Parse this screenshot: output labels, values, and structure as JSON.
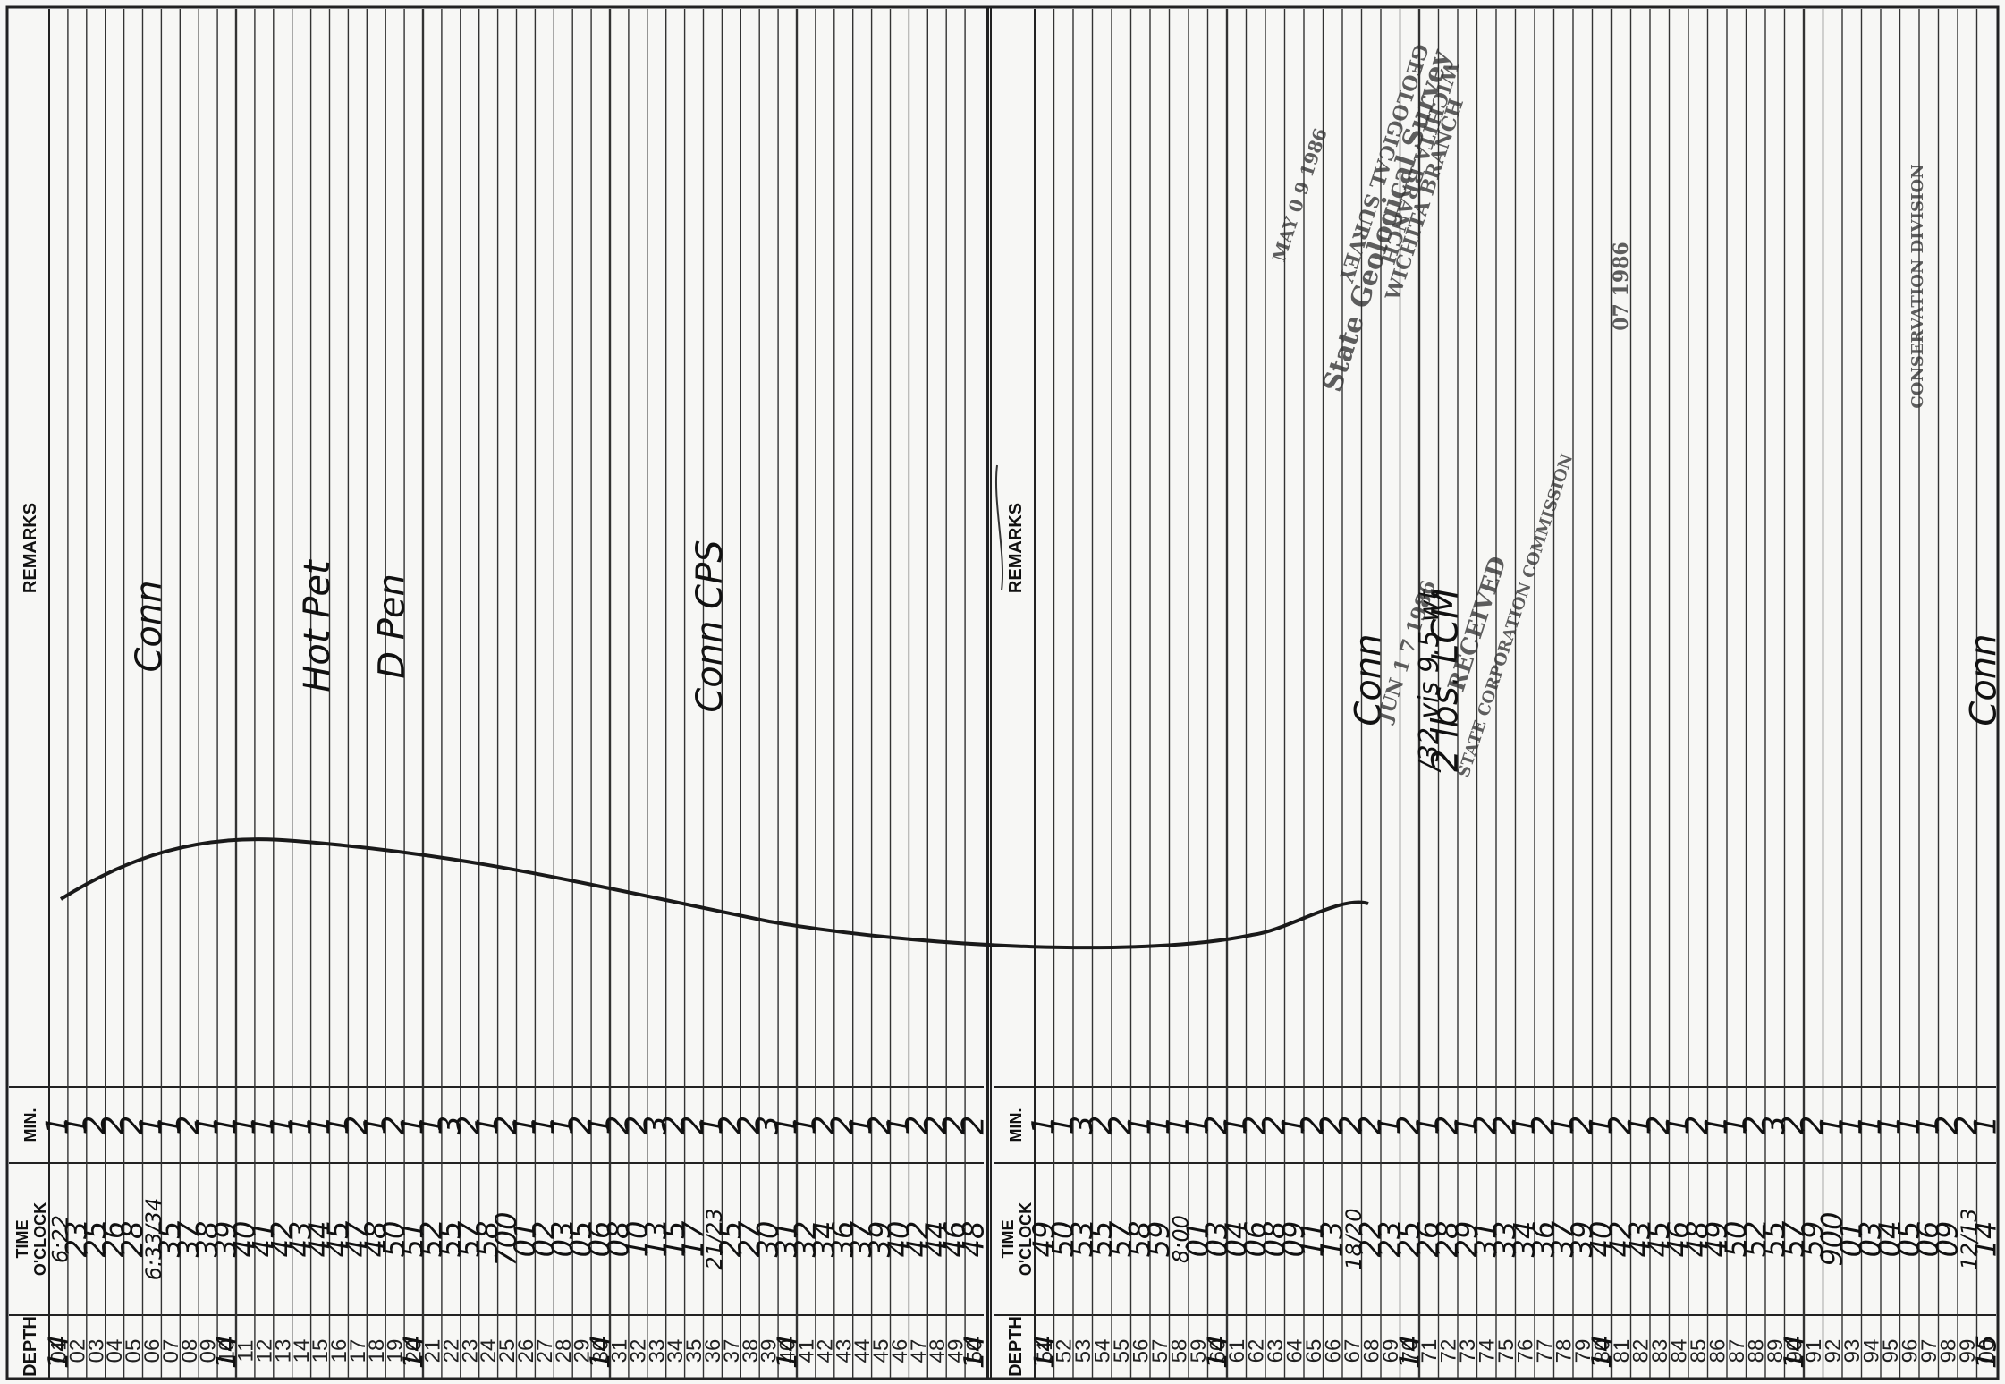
{
  "header": {
    "depth": "DEPTH",
    "time_line1": "TIME",
    "time_line2": "O'CLOCK",
    "min": "MIN.",
    "remarks": "REMARKS"
  },
  "left_panel": {
    "rows": [
      {
        "depth": "01",
        "hundreds": "14",
        "time": "6:22",
        "min": "1"
      },
      {
        "depth": "02",
        "time": "23",
        "min": "1"
      },
      {
        "depth": "03",
        "time": "25",
        "min": "2"
      },
      {
        "depth": "04",
        "time": "26",
        "min": "2"
      },
      {
        "depth": "05",
        "time": "28",
        "min": "2"
      },
      {
        "depth": "06",
        "time": "6:33/34",
        "min": "1"
      },
      {
        "depth": "07",
        "time": "35",
        "min": "1"
      },
      {
        "depth": "08",
        "time": "37",
        "min": "2"
      },
      {
        "depth": "09",
        "time": "38",
        "min": "1"
      },
      {
        "depth": "10",
        "hundreds": "14",
        "time": "39",
        "min": "1"
      },
      {
        "depth": "11",
        "time": "40",
        "min": "1"
      },
      {
        "depth": "12",
        "time": "41",
        "min": "1"
      },
      {
        "depth": "13",
        "time": "42",
        "min": "1"
      },
      {
        "depth": "14",
        "time": "43",
        "min": "1"
      },
      {
        "depth": "15",
        "time": "44",
        "min": "1"
      },
      {
        "depth": "16",
        "time": "45",
        "min": "1"
      },
      {
        "depth": "17",
        "time": "47",
        "min": "2"
      },
      {
        "depth": "18",
        "time": "48",
        "min": "1"
      },
      {
        "depth": "19",
        "time": "50",
        "min": "2"
      },
      {
        "depth": "20",
        "hundreds": "14",
        "time": "51",
        "min": "1"
      },
      {
        "depth": "21",
        "time": "52",
        "min": "1"
      },
      {
        "depth": "22",
        "time": "55",
        "min": "3"
      },
      {
        "depth": "23",
        "time": "57",
        "min": "2"
      },
      {
        "depth": "24",
        "time": "58",
        "min": "1"
      },
      {
        "depth": "25",
        "time": "700",
        "min": "2"
      },
      {
        "depth": "26",
        "time": "01",
        "min": "1"
      },
      {
        "depth": "27",
        "time": "02",
        "min": "1"
      },
      {
        "depth": "28",
        "time": "03",
        "min": "1"
      },
      {
        "depth": "29",
        "time": "05",
        "min": "2"
      },
      {
        "depth": "30",
        "hundreds": "14",
        "time": "06",
        "min": "1"
      },
      {
        "depth": "31",
        "time": "08",
        "min": "2"
      },
      {
        "depth": "32",
        "time": "10",
        "min": "2"
      },
      {
        "depth": "33",
        "time": "13",
        "min": "3"
      },
      {
        "depth": "34",
        "time": "15",
        "min": "2"
      },
      {
        "depth": "35",
        "time": "17",
        "min": "2"
      },
      {
        "depth": "36",
        "time": "21/23",
        "min": "1"
      },
      {
        "depth": "37",
        "time": "25",
        "min": "2"
      },
      {
        "depth": "38",
        "time": "27",
        "min": "2"
      },
      {
        "depth": "39",
        "time": "30",
        "min": "3"
      },
      {
        "depth": "40",
        "hundreds": "14",
        "time": "31",
        "min": "1"
      },
      {
        "depth": "41",
        "time": "32",
        "min": "1"
      },
      {
        "depth": "42",
        "time": "34",
        "min": "2"
      },
      {
        "depth": "43",
        "time": "36",
        "min": "2"
      },
      {
        "depth": "44",
        "time": "37",
        "min": "1"
      },
      {
        "depth": "45",
        "time": "39",
        "min": "2"
      },
      {
        "depth": "46",
        "time": "40",
        "min": "1"
      },
      {
        "depth": "47",
        "time": "42",
        "min": "2"
      },
      {
        "depth": "48",
        "time": "44",
        "min": "2"
      },
      {
        "depth": "49",
        "time": "46",
        "min": "2"
      },
      {
        "depth": "50",
        "hundreds": "14",
        "time": "48",
        "min": "2"
      }
    ],
    "remarks": [
      {
        "row": 5,
        "text": "Conn"
      },
      {
        "row": 14,
        "text": "Hot Pet"
      },
      {
        "row": 18,
        "text": "D Pen"
      },
      {
        "row": 35,
        "text": "Conn CPS"
      }
    ]
  },
  "right_panel": {
    "rows": [
      {
        "depth": "51",
        "hundreds": "14",
        "time": "49",
        "min": "1"
      },
      {
        "depth": "52",
        "time": "50",
        "min": "1"
      },
      {
        "depth": "53",
        "time": "53",
        "min": "3"
      },
      {
        "depth": "54",
        "time": "55",
        "min": "2"
      },
      {
        "depth": "55",
        "time": "57",
        "min": "2"
      },
      {
        "depth": "56",
        "time": "58",
        "min": "1"
      },
      {
        "depth": "57",
        "time": "59",
        "min": "1"
      },
      {
        "depth": "58",
        "time": "8:00",
        "min": "1"
      },
      {
        "depth": "59",
        "time": "01",
        "min": "1"
      },
      {
        "depth": "60",
        "hundreds": "14",
        "time": "03",
        "min": "2"
      },
      {
        "depth": "61",
        "time": "04",
        "min": "1"
      },
      {
        "depth": "62",
        "time": "06",
        "min": "2"
      },
      {
        "depth": "63",
        "time": "08",
        "min": "2"
      },
      {
        "depth": "64",
        "time": "09",
        "min": "1"
      },
      {
        "depth": "65",
        "time": "11",
        "min": "2"
      },
      {
        "depth": "66",
        "time": "13",
        "min": "2"
      },
      {
        "depth": "67",
        "time": "18/20",
        "min": "2"
      },
      {
        "depth": "68",
        "time": "22",
        "min": "2"
      },
      {
        "depth": "69",
        "time": "23",
        "min": "1"
      },
      {
        "depth": "70",
        "hundreds": "14",
        "time": "25",
        "min": "2"
      },
      {
        "depth": "71",
        "time": "26",
        "min": "1"
      },
      {
        "depth": "72",
        "time": "28",
        "min": "2"
      },
      {
        "depth": "73",
        "time": "29",
        "min": "1"
      },
      {
        "depth": "74",
        "time": "31",
        "min": "2"
      },
      {
        "depth": "75",
        "time": "33",
        "min": "2"
      },
      {
        "depth": "76",
        "time": "34",
        "min": "1"
      },
      {
        "depth": "77",
        "time": "36",
        "min": "2"
      },
      {
        "depth": "78",
        "time": "37",
        "min": "1"
      },
      {
        "depth": "79",
        "time": "39",
        "min": "2"
      },
      {
        "depth": "80",
        "hundreds": "14",
        "time": "40",
        "min": "1"
      },
      {
        "depth": "81",
        "time": "42",
        "min": "2"
      },
      {
        "depth": "82",
        "time": "43",
        "min": "1"
      },
      {
        "depth": "83",
        "time": "45",
        "min": "2"
      },
      {
        "depth": "84",
        "time": "46",
        "min": "1"
      },
      {
        "depth": "85",
        "time": "48",
        "min": "2"
      },
      {
        "depth": "86",
        "time": "49",
        "min": "1"
      },
      {
        "depth": "87",
        "time": "50",
        "min": "1"
      },
      {
        "depth": "88",
        "time": "52",
        "min": "2"
      },
      {
        "depth": "89",
        "time": "55",
        "min": "3"
      },
      {
        "depth": "90",
        "hundreds": "14",
        "time": "57",
        "min": "2"
      },
      {
        "depth": "91",
        "time": "59",
        "min": "2"
      },
      {
        "depth": "92",
        "time": "900",
        "min": "1"
      },
      {
        "depth": "93",
        "time": "01",
        "min": "1"
      },
      {
        "depth": "94",
        "time": "03",
        "min": "1"
      },
      {
        "depth": "95",
        "time": "04",
        "min": "1"
      },
      {
        "depth": "96",
        "time": "05",
        "min": "1"
      },
      {
        "depth": "97",
        "time": "06",
        "min": "1"
      },
      {
        "depth": "98",
        "time": "09",
        "min": "2"
      },
      {
        "depth": "99",
        "time": "12/13",
        "min": "2"
      },
      {
        "depth": "00",
        "hundreds": "15",
        "time": "14",
        "min": "1"
      }
    ],
    "remarks": [
      {
        "row": 17,
        "text": "Conn"
      },
      {
        "row": 20,
        "text": "/32 vis  9.5 wt"
      },
      {
        "row": 21,
        "text": "2 lbs. LCM"
      },
      {
        "row": 49,
        "text": "Conn"
      }
    ]
  },
  "stamps": {
    "survey_line1": "State Geological Survey",
    "survey_line2": "WICHITA BRANCH",
    "survey_date": "MAY 0 9 1986",
    "received": "RECEIVED",
    "commission": "STATE CORPORATION COMMISSION",
    "received_date": "JUN 1 7 1986",
    "survey2": "GEOLOGICAL SURVEY",
    "branch2": "WICHITA BRANCH",
    "conservation": "CONSERVATION DIVISION",
    "cons_date": "07 1986"
  }
}
